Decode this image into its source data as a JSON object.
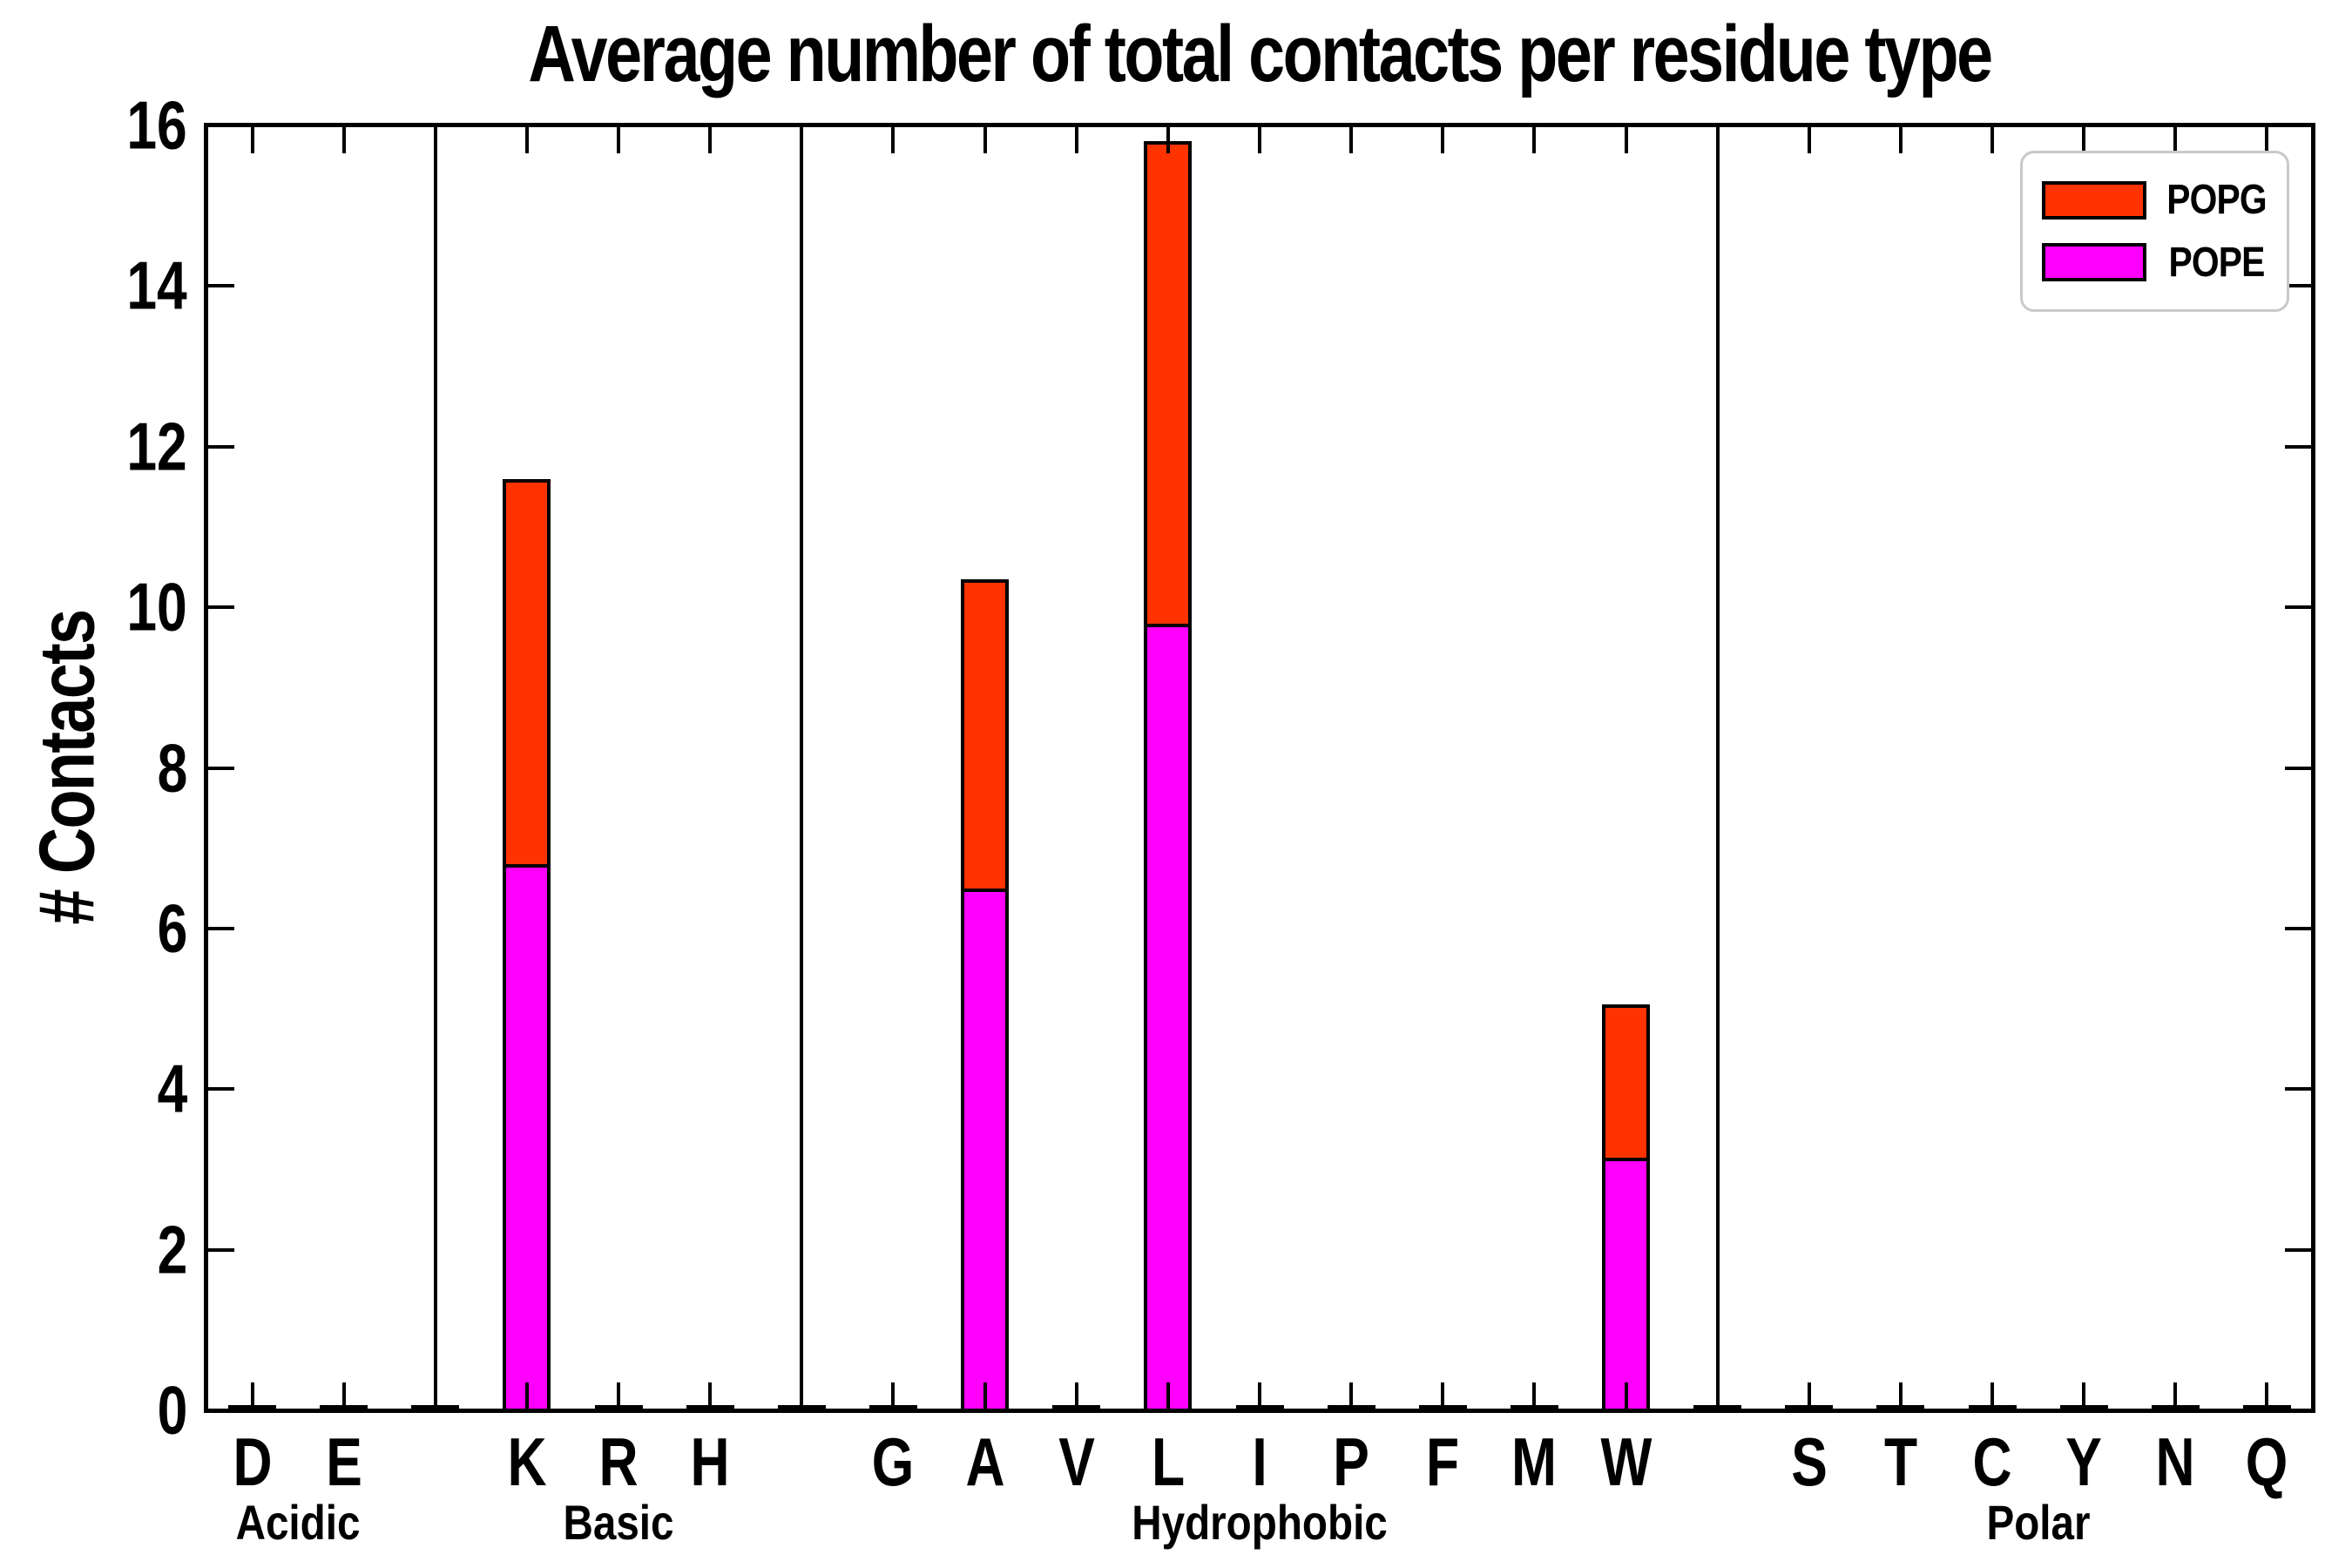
{
  "title": "Average number of total contacts per residue type",
  "y_axis": {
    "label": "# Contacts",
    "min": 0,
    "max": 16,
    "tick_step": 2,
    "tick_labels": [
      "0",
      "2",
      "4",
      "6",
      "8",
      "10",
      "12",
      "14",
      "16"
    ]
  },
  "legend": {
    "position": "top-right",
    "items": [
      {
        "label": "POPG",
        "color": "#ff3300"
      },
      {
        "label": "POPE",
        "color": "#ff00ff"
      }
    ]
  },
  "chart_data": {
    "type": "bar",
    "stacked": true,
    "title": "Average number of total contacts per residue type",
    "ylabel": "# Contacts",
    "ylim": [
      0,
      16
    ],
    "grid": false,
    "bar_edge_color": "#000000",
    "groups": [
      {
        "name": "Acidic",
        "residues": [
          "D",
          "E"
        ]
      },
      {
        "name": "Basic",
        "residues": [
          "K",
          "R",
          "H"
        ]
      },
      {
        "name": "Hydrophobic",
        "residues": [
          "G",
          "A",
          "V",
          "L",
          "I",
          "P",
          "F",
          "M",
          "W"
        ]
      },
      {
        "name": "Polar",
        "residues": [
          "S",
          "T",
          "C",
          "Y",
          "N",
          "Q"
        ]
      }
    ],
    "categories": [
      "D",
      "E",
      "K",
      "R",
      "H",
      "G",
      "A",
      "V",
      "L",
      "I",
      "P",
      "F",
      "M",
      "W",
      "S",
      "T",
      "C",
      "Y",
      "N",
      "Q"
    ],
    "series": [
      {
        "name": "POPE",
        "color": "#ff00ff",
        "values": {
          "D": 0.03,
          "E": 0.03,
          "K": 6.8,
          "R": 0.03,
          "H": 0.03,
          "G": 0.03,
          "A": 6.5,
          "V": 0.03,
          "L": 9.8,
          "I": 0.03,
          "P": 0.03,
          "F": 0.03,
          "M": 0.03,
          "W": 3.15,
          "S": 0.03,
          "T": 0.03,
          "C": 0.03,
          "Y": 0.03,
          "N": 0.03,
          "Q": 0.03
        }
      },
      {
        "name": "POPG",
        "color": "#ff3300",
        "values": {
          "D": 0.03,
          "E": 0.03,
          "K": 4.8,
          "R": 0.03,
          "H": 0.03,
          "G": 0.03,
          "A": 3.85,
          "V": 0.03,
          "L": 6.0,
          "I": 0.03,
          "P": 0.03,
          "F": 0.03,
          "M": 0.03,
          "W": 1.9,
          "S": 0.03,
          "T": 0.03,
          "C": 0.03,
          "Y": 0.03,
          "N": 0.03,
          "Q": 0.03
        }
      }
    ],
    "stacked_totals": {
      "K": 11.6,
      "A": 10.35,
      "L": 15.8,
      "W": 5.05
    }
  }
}
